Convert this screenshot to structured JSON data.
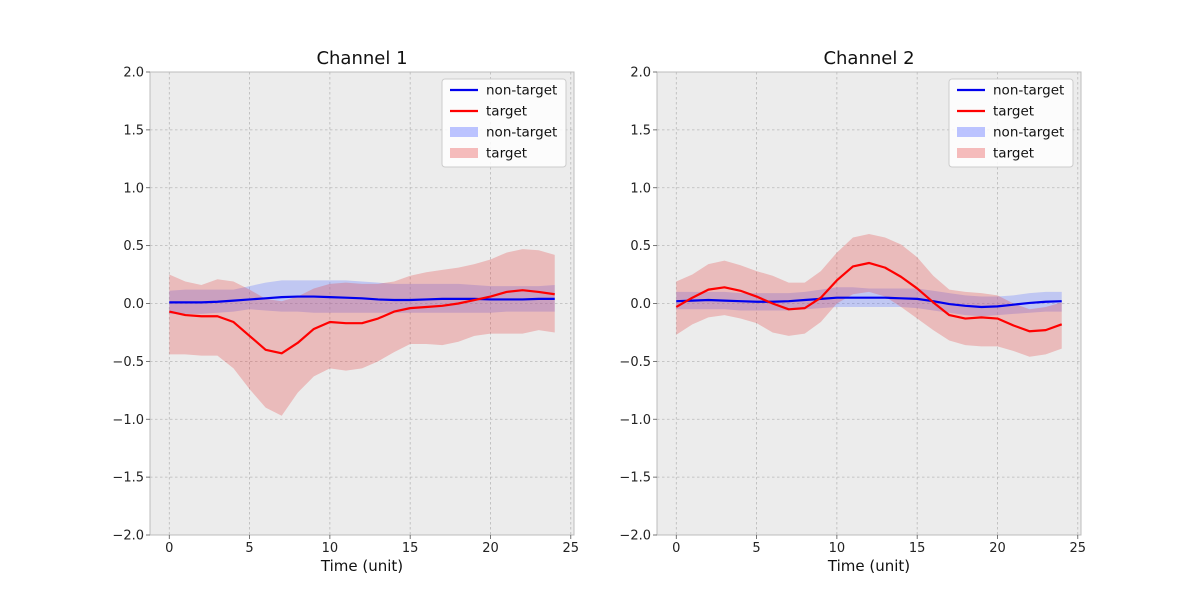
{
  "chart_data": [
    {
      "type": "line",
      "title": "Channel 1",
      "xlabel": "Time (unit)",
      "ylabel": "",
      "xlim": [
        -1.2,
        25.2
      ],
      "ylim": [
        -2.0,
        2.0
      ],
      "xticks": [
        0,
        5,
        10,
        15,
        20,
        25
      ],
      "yticks": [
        2.0,
        1.5,
        1.0,
        0.5,
        0.0,
        -0.5,
        -1.0,
        -1.5,
        -2.0
      ],
      "ytick_labels": [
        "2.0",
        "1.5",
        "1.0",
        "0.5",
        "0.0",
        "−0.5",
        "−1.0",
        "−1.5",
        "−2.0"
      ],
      "grid": true,
      "legend_position": "top-right",
      "legend": [
        {
          "label": "non-target",
          "kind": "line",
          "color": "#0000ee"
        },
        {
          "label": "target",
          "kind": "line",
          "color": "#ff0000"
        },
        {
          "label": "non-target",
          "kind": "band",
          "color": "#aab4ff"
        },
        {
          "label": "target",
          "kind": "band",
          "color": "#f2aaaa"
        }
      ],
      "x": [
        0,
        1,
        2,
        3,
        4,
        5,
        6,
        7,
        8,
        9,
        10,
        11,
        12,
        13,
        14,
        15,
        16,
        17,
        18,
        19,
        20,
        21,
        22,
        23,
        24
      ],
      "series": [
        {
          "name": "non-target",
          "color": "#0000ee",
          "values": [
            0.01,
            0.01,
            0.01,
            0.015,
            0.025,
            0.035,
            0.045,
            0.055,
            0.06,
            0.06,
            0.055,
            0.05,
            0.045,
            0.035,
            0.03,
            0.03,
            0.035,
            0.04,
            0.04,
            0.04,
            0.035,
            0.035,
            0.035,
            0.04,
            0.04
          ],
          "band_upper": [
            0.11,
            0.12,
            0.12,
            0.12,
            0.12,
            0.15,
            0.18,
            0.2,
            0.2,
            0.2,
            0.2,
            0.2,
            0.19,
            0.18,
            0.17,
            0.17,
            0.17,
            0.17,
            0.17,
            0.16,
            0.15,
            0.15,
            0.15,
            0.15,
            0.16
          ],
          "band_lower": [
            -0.09,
            -0.09,
            -0.09,
            -0.08,
            -0.07,
            -0.05,
            -0.06,
            -0.07,
            -0.07,
            -0.08,
            -0.08,
            -0.08,
            -0.08,
            -0.08,
            -0.08,
            -0.08,
            -0.08,
            -0.08,
            -0.08,
            -0.08,
            -0.08,
            -0.07,
            -0.07,
            -0.07,
            -0.07
          ]
        },
        {
          "name": "target",
          "color": "#ff0000",
          "values": [
            -0.07,
            -0.1,
            -0.11,
            -0.11,
            -0.16,
            -0.28,
            -0.4,
            -0.43,
            -0.34,
            -0.22,
            -0.16,
            -0.17,
            -0.17,
            -0.13,
            -0.07,
            -0.04,
            -0.03,
            -0.02,
            0.0,
            0.03,
            0.06,
            0.1,
            0.115,
            0.1,
            0.08
          ],
          "band_upper": [
            0.25,
            0.19,
            0.16,
            0.21,
            0.19,
            0.12,
            0.04,
            0.02,
            0.06,
            0.13,
            0.17,
            0.18,
            0.17,
            0.17,
            0.19,
            0.24,
            0.27,
            0.29,
            0.31,
            0.34,
            0.38,
            0.44,
            0.47,
            0.46,
            0.42
          ],
          "band_lower": [
            -0.44,
            -0.44,
            -0.45,
            -0.45,
            -0.56,
            -0.74,
            -0.9,
            -0.97,
            -0.77,
            -0.63,
            -0.56,
            -0.58,
            -0.56,
            -0.5,
            -0.42,
            -0.35,
            -0.35,
            -0.36,
            -0.33,
            -0.28,
            -0.26,
            -0.26,
            -0.26,
            -0.23,
            -0.25
          ]
        }
      ]
    },
    {
      "type": "line",
      "title": "Channel 2",
      "xlabel": "Time (unit)",
      "ylabel": "",
      "xlim": [
        -1.2,
        25.2
      ],
      "ylim": [
        -2.0,
        2.0
      ],
      "xticks": [
        0,
        5,
        10,
        15,
        20,
        25
      ],
      "yticks": [
        2.0,
        1.5,
        1.0,
        0.5,
        0.0,
        -0.5,
        -1.0,
        -1.5,
        -2.0
      ],
      "ytick_labels": [
        "2.0",
        "1.5",
        "1.0",
        "0.5",
        "0.0",
        "−0.5",
        "−1.0",
        "−1.5",
        "−2.0"
      ],
      "grid": true,
      "legend_position": "top-right",
      "legend": [
        {
          "label": "non-target",
          "kind": "line",
          "color": "#0000ee"
        },
        {
          "label": "target",
          "kind": "line",
          "color": "#ff0000"
        },
        {
          "label": "non-target",
          "kind": "band",
          "color": "#aab4ff"
        },
        {
          "label": "target",
          "kind": "band",
          "color": "#f2aaaa"
        }
      ],
      "x": [
        0,
        1,
        2,
        3,
        4,
        5,
        6,
        7,
        8,
        9,
        10,
        11,
        12,
        13,
        14,
        15,
        16,
        17,
        18,
        19,
        20,
        21,
        22,
        23,
        24
      ],
      "series": [
        {
          "name": "non-target",
          "color": "#0000ee",
          "values": [
            0.02,
            0.025,
            0.03,
            0.025,
            0.02,
            0.015,
            0.015,
            0.02,
            0.03,
            0.04,
            0.05,
            0.05,
            0.05,
            0.05,
            0.045,
            0.04,
            0.02,
            -0.005,
            -0.02,
            -0.03,
            -0.025,
            -0.01,
            0.005,
            0.015,
            0.02
          ],
          "band_upper": [
            0.1,
            0.1,
            0.1,
            0.1,
            0.09,
            0.09,
            0.09,
            0.09,
            0.1,
            0.12,
            0.14,
            0.14,
            0.13,
            0.13,
            0.13,
            0.13,
            0.11,
            0.09,
            0.07,
            0.06,
            0.06,
            0.07,
            0.09,
            0.1,
            0.1
          ],
          "band_lower": [
            -0.05,
            -0.05,
            -0.05,
            -0.05,
            -0.06,
            -0.06,
            -0.06,
            -0.06,
            -0.05,
            -0.04,
            -0.03,
            -0.03,
            -0.03,
            -0.03,
            -0.03,
            -0.04,
            -0.06,
            -0.08,
            -0.1,
            -0.11,
            -0.1,
            -0.09,
            -0.08,
            -0.07,
            -0.07
          ]
        },
        {
          "name": "target",
          "color": "#ff0000",
          "values": [
            -0.03,
            0.05,
            0.12,
            0.14,
            0.11,
            0.06,
            0.0,
            -0.05,
            -0.04,
            0.05,
            0.2,
            0.32,
            0.35,
            0.31,
            0.23,
            0.13,
            0.01,
            -0.1,
            -0.13,
            -0.12,
            -0.13,
            -0.19,
            -0.24,
            -0.23,
            -0.18
          ],
          "band_upper": [
            0.19,
            0.25,
            0.34,
            0.37,
            0.33,
            0.28,
            0.24,
            0.18,
            0.18,
            0.28,
            0.44,
            0.57,
            0.6,
            0.57,
            0.51,
            0.4,
            0.24,
            0.12,
            0.1,
            0.09,
            0.07,
            0.0,
            -0.05,
            -0.03,
            0.01
          ],
          "band_lower": [
            -0.27,
            -0.18,
            -0.12,
            -0.1,
            -0.13,
            -0.17,
            -0.25,
            -0.28,
            -0.26,
            -0.16,
            0.0,
            0.08,
            0.1,
            0.06,
            -0.03,
            -0.13,
            -0.23,
            -0.32,
            -0.36,
            -0.37,
            -0.37,
            -0.41,
            -0.46,
            -0.44,
            -0.39
          ]
        }
      ]
    }
  ]
}
